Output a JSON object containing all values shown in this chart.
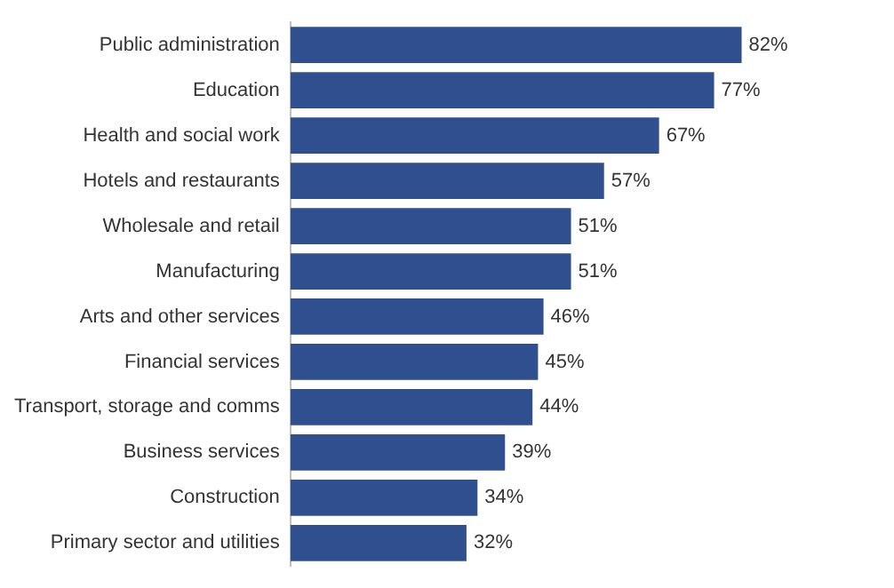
{
  "chart_data": {
    "type": "bar",
    "orientation": "horizontal",
    "categories": [
      "Public administration",
      "Education",
      "Health and social work",
      "Hotels and restaurants",
      "Wholesale and retail",
      "Manufacturing",
      "Arts and other services",
      "Financial services",
      "Transport, storage and comms",
      "Business services",
      "Construction",
      "Primary sector and utilities"
    ],
    "values": [
      82,
      77,
      67,
      57,
      51,
      51,
      46,
      45,
      44,
      39,
      34,
      32
    ],
    "value_labels": [
      "82%",
      "77%",
      "67%",
      "57%",
      "51%",
      "51%",
      "46%",
      "45%",
      "44%",
      "39%",
      "34%",
      "32%"
    ],
    "color": "#2f4f8f",
    "tick_labels": "y"
  }
}
